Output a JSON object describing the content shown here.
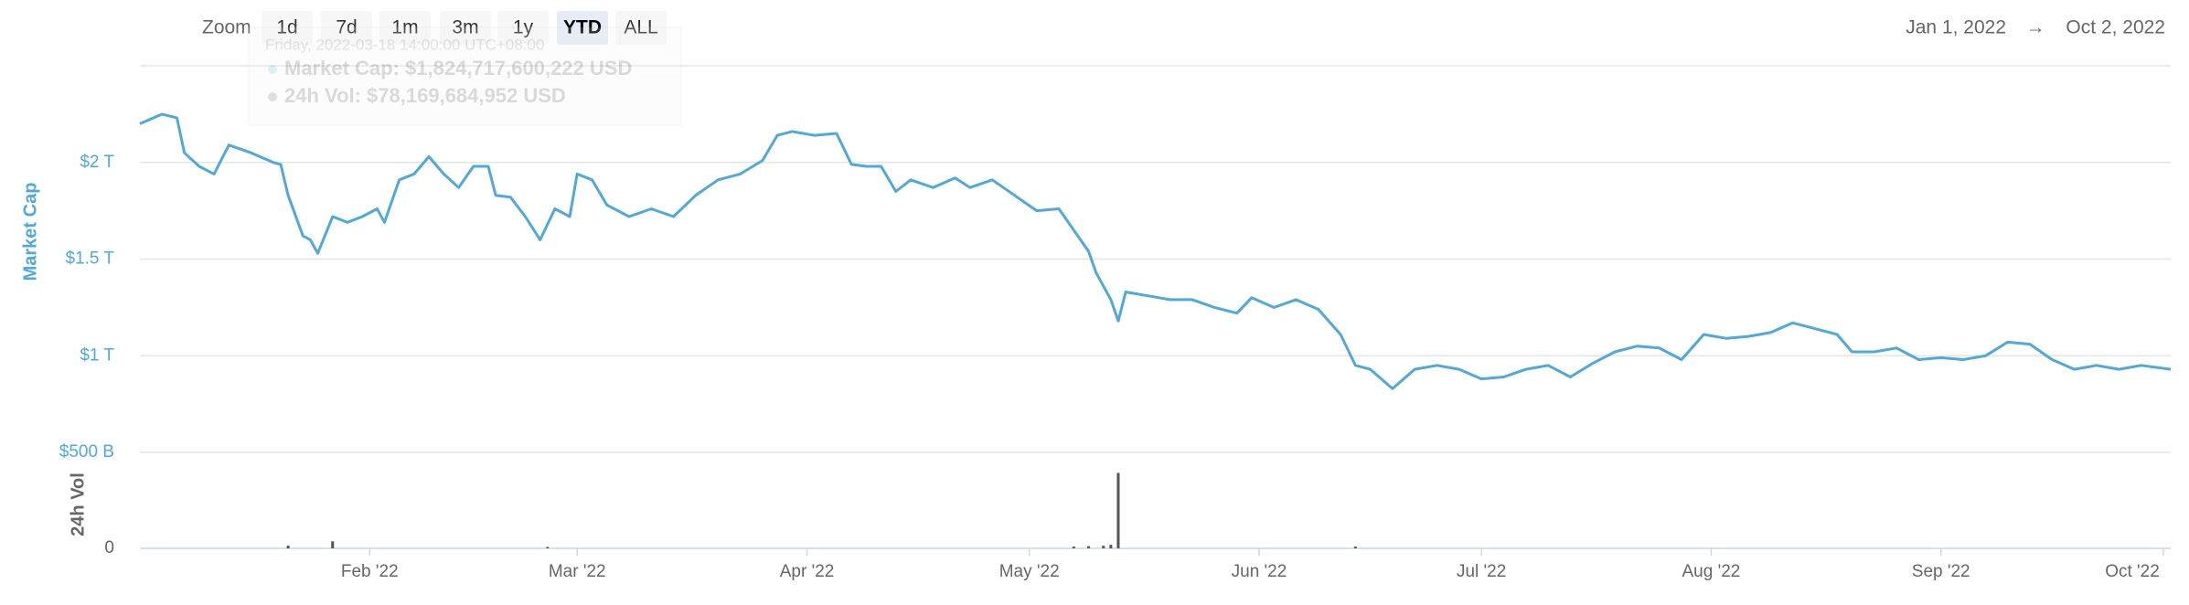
{
  "zoom": {
    "label": "Zoom",
    "buttons": [
      "1d",
      "7d",
      "1m",
      "3m",
      "1y",
      "YTD",
      "ALL"
    ],
    "active": "YTD"
  },
  "range": {
    "from": "Jan 1, 2022",
    "arrow": "→",
    "to": "Oct 2, 2022"
  },
  "tooltip": {
    "date": "Friday, 2022-03-18 14:00:00 UTC+08:00",
    "lines": [
      "Market Cap: $1,824,717,600,222 USD",
      "24h Vol: $78,169,684,952 USD"
    ]
  },
  "chart_data": [
    {
      "type": "line",
      "y_label": "Market Cap",
      "xlim": [
        0,
        274
      ],
      "ylim": [
        500000000000,
        2500000000000
      ],
      "yticks": [
        {
          "value": 500000000000,
          "label": "$500 B"
        },
        {
          "value": 1000000000000,
          "label": "$1 T"
        },
        {
          "value": 1500000000000,
          "label": "$1.5 T"
        },
        {
          "value": 2000000000000,
          "label": "$2 T"
        }
      ],
      "grid": true,
      "color": "#4fa9d9",
      "x": [
        0,
        3,
        5,
        6,
        8,
        10,
        12,
        15,
        18,
        19,
        20,
        22,
        23,
        24,
        26,
        28,
        30,
        32,
        33,
        35,
        37,
        39,
        41,
        43,
        45,
        47,
        48,
        50,
        52,
        54,
        56,
        58,
        59,
        61,
        63,
        66,
        69,
        72,
        75,
        78,
        81,
        84,
        86,
        88,
        91,
        94,
        96,
        98,
        100,
        102,
        104,
        107,
        110,
        112,
        115,
        118,
        121,
        124,
        126,
        128,
        129,
        131,
        132,
        133,
        136,
        139,
        142,
        145,
        148,
        150,
        153,
        156,
        159,
        162,
        164,
        166,
        169,
        172,
        175,
        178,
        181,
        184,
        187,
        190,
        193,
        196,
        199,
        202,
        205,
        208,
        211,
        214,
        217,
        220,
        223,
        226,
        229,
        231,
        234,
        237,
        240,
        243,
        246,
        249,
        252,
        255,
        258,
        261,
        264,
        267,
        270,
        274
      ],
      "values": [
        2200000000000.0,
        2250000000000.0,
        2230000000000.0,
        2050000000000.0,
        1980000000000.0,
        1940000000000.0,
        2090000000000.0,
        2050000000000.0,
        2000000000000.0,
        1990000000000.0,
        1830000000000.0,
        1620000000000.0,
        1600000000000.0,
        1530000000000.0,
        1720000000000.0,
        1690000000000.0,
        1720000000000.0,
        1760000000000.0,
        1690000000000.0,
        1910000000000.0,
        1940000000000.0,
        2030000000000.0,
        1940000000000.0,
        1870000000000.0,
        1980000000000.0,
        1980000000000.0,
        1830000000000.0,
        1820000000000.0,
        1720000000000.0,
        1600000000000.0,
        1760000000000.0,
        1720000000000.0,
        1940000000000.0,
        1910000000000.0,
        1780000000000.0,
        1720000000000.0,
        1760000000000.0,
        1720000000000.0,
        1830000000000.0,
        1910000000000.0,
        1940000000000.0,
        2010000000000.0,
        2140000000000.0,
        2160000000000.0,
        2140000000000.0,
        2150000000000.0,
        1990000000000.0,
        1980000000000.0,
        1980000000000.0,
        1850000000000.0,
        1910000000000.0,
        1870000000000.0,
        1920000000000.0,
        1870000000000.0,
        1910000000000.0,
        1830000000000.0,
        1750000000000.0,
        1760000000000.0,
        1650000000000.0,
        1540000000000.0,
        1430000000000.0,
        1290000000000.0,
        1180000000000.0,
        1330000000000.0,
        1310000000000.0,
        1290000000000.0,
        1290000000000.0,
        1250000000000.0,
        1220000000000.0,
        1300000000000.0,
        1250000000000.0,
        1290000000000.0,
        1240000000000.0,
        1110000000000.0,
        950000000000.0,
        930000000000.0,
        830000000000.0,
        930000000000.0,
        950000000000.0,
        930000000000.0,
        880000000000.0,
        890000000000.0,
        930000000000.0,
        950000000000.0,
        890000000000.0,
        960000000000.0,
        1020000000000.0,
        1050000000000.0,
        1040000000000.0,
        980000000000.0,
        1110000000000.0,
        1090000000000.0,
        1100000000000.0,
        1120000000000.0,
        1170000000000.0,
        1140000000000.0,
        1110000000000.0,
        1020000000000.0,
        1020000000000.0,
        1040000000000.0,
        980000000000.0,
        990000000000.0,
        980000000000.0,
        1000000000000.0,
        1070000000000.0,
        1060000000000.0,
        980000000000.0,
        930000000000.0,
        950000000000.0,
        930000000000.0,
        950000000000.0,
        930000000000.0
      ]
    },
    {
      "type": "bar",
      "y_label": "24h Vol",
      "xlim": [
        0,
        274
      ],
      "ylim": [
        0,
        500000000000
      ],
      "yticks": [
        0
      ],
      "xticks": [
        {
          "value": 31,
          "label": "Feb '22"
        },
        {
          "value": 59,
          "label": "Mar '22"
        },
        {
          "value": 90,
          "label": "Apr '22"
        },
        {
          "value": 120,
          "label": "May '22"
        },
        {
          "value": 151,
          "label": "Jun '22"
        },
        {
          "value": 181,
          "label": "Jul '22"
        },
        {
          "value": 212,
          "label": "Aug '22"
        },
        {
          "value": 243,
          "label": "Sep '22"
        },
        {
          "value": 273,
          "label": "Oct '22"
        }
      ],
      "color": "#555555",
      "x": [
        20,
        26,
        55,
        126,
        128,
        130,
        131,
        132,
        164
      ],
      "values": [
        15000000000,
        40000000000,
        8000000000,
        10000000000,
        12000000000,
        15000000000,
        20000000000,
        430000000000,
        10000000000
      ]
    }
  ]
}
